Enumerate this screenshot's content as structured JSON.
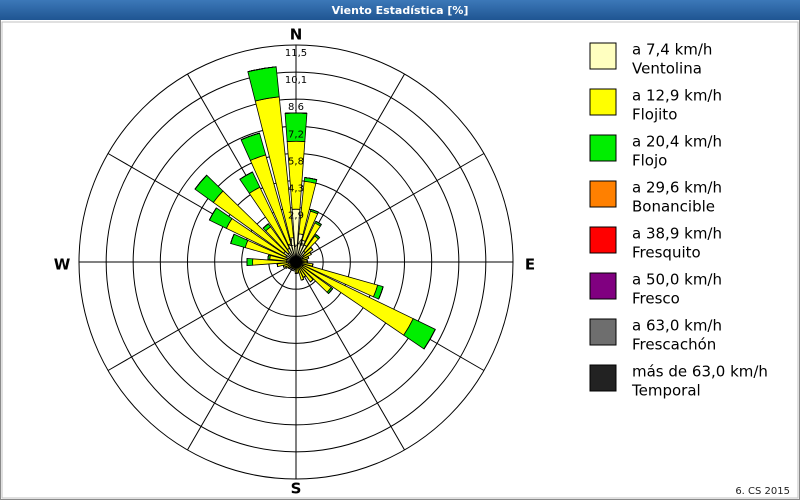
{
  "chart_data": {
    "type": "windrose",
    "title": "Viento Estadística [%]",
    "x": [
      0,
      10,
      20,
      30,
      40,
      50,
      60,
      70,
      80,
      90,
      100,
      110,
      120,
      130,
      140,
      150,
      160,
      170,
      180,
      190,
      200,
      210,
      220,
      230,
      240,
      250,
      260,
      270,
      280,
      290,
      300,
      310,
      320,
      330,
      340,
      350
    ],
    "rlim": [
      0,
      11.5
    ],
    "rticks": [
      {
        "value": 1.44,
        "label": "1,4"
      },
      {
        "value": 2.88,
        "label": "2,9"
      },
      {
        "value": 4.31,
        "label": "4,3"
      },
      {
        "value": 5.75,
        "label": "5,8"
      },
      {
        "value": 7.19,
        "label": "7,2"
      },
      {
        "value": 8.63,
        "label": "8,6"
      },
      {
        "value": 10.06,
        "label": "10,1"
      },
      {
        "value": 11.5,
        "label": "11,5"
      }
    ],
    "compass_labels": [
      "N",
      "E",
      "S",
      "W"
    ],
    "series": [
      {
        "range": "a 7,4 km/h",
        "name": "Ventolina",
        "color": "#ffffc0",
        "values": [
          2.8,
          1.5,
          1.2,
          1.0,
          0.7,
          0.5,
          0.4,
          0.3,
          0.3,
          0.3,
          0.3,
          0.4,
          0.4,
          0.3,
          0.3,
          0.3,
          0.3,
          0.3,
          0.3,
          0.2,
          0.2,
          0.2,
          0.2,
          0.2,
          0.3,
          0.3,
          0.4,
          0.5,
          0.5,
          0.5,
          0.6,
          0.8,
          0.6,
          0.8,
          1.0,
          1.3
        ]
      },
      {
        "range": "a 12,9 km/h",
        "name": "Flojito",
        "color": "#ffff00",
        "values": [
          3.6,
          2.8,
          1.6,
          1.3,
          1.0,
          0.6,
          0.5,
          0.4,
          0.3,
          0.3,
          0.6,
          4.1,
          6.5,
          2.0,
          1.0,
          0.6,
          0.7,
          0.3,
          0.3,
          0.2,
          0.2,
          0.2,
          0.2,
          0.3,
          0.3,
          0.4,
          0.6,
          1.8,
          0.9,
          2.3,
          3.5,
          4.6,
          1.7,
          3.6,
          4.9,
          7.5
        ]
      },
      {
        "range": "a 20,4 km/h",
        "name": "Flojo",
        "color": "#00ee00",
        "values": [
          1.5,
          0.2,
          0.1,
          0.1,
          0.1,
          0,
          0,
          0,
          0,
          0,
          0,
          0.3,
          1.3,
          0.1,
          0,
          0,
          0,
          0,
          0,
          0,
          0,
          0,
          0,
          0,
          0,
          0,
          0,
          0.3,
          0.1,
          0.8,
          1.0,
          1.2,
          0.2,
          0.9,
          1.2,
          1.6
        ]
      },
      {
        "range": "a 29,6 km/h",
        "name": "Bonancible",
        "color": "#ff8000",
        "values": [
          0,
          0,
          0,
          0,
          0,
          0,
          0,
          0,
          0,
          0,
          0,
          0,
          0,
          0,
          0,
          0,
          0,
          0,
          0,
          0,
          0,
          0,
          0,
          0,
          0,
          0,
          0,
          0,
          0,
          0,
          0,
          0,
          0,
          0,
          0,
          0
        ]
      },
      {
        "range": "a 38,9 km/h",
        "name": "Fresquito",
        "color": "#ff0000",
        "values": [
          0,
          0,
          0,
          0,
          0,
          0,
          0,
          0,
          0,
          0,
          0,
          0,
          0,
          0,
          0,
          0,
          0,
          0,
          0,
          0,
          0,
          0,
          0,
          0,
          0,
          0,
          0,
          0,
          0,
          0,
          0,
          0,
          0,
          0,
          0,
          0
        ]
      },
      {
        "range": "a 50,0 km/h",
        "name": "Fresco",
        "color": "#800080",
        "values": [
          0,
          0,
          0,
          0,
          0,
          0,
          0,
          0,
          0,
          0,
          0,
          0,
          0,
          0,
          0,
          0,
          0,
          0,
          0,
          0,
          0,
          0,
          0,
          0,
          0,
          0,
          0,
          0,
          0,
          0,
          0,
          0,
          0,
          0,
          0,
          0
        ]
      },
      {
        "range": "a 63,0 km/h",
        "name": "Frescachón",
        "color": "#6e6e6e",
        "values": [
          0,
          0,
          0,
          0,
          0,
          0,
          0,
          0,
          0,
          0,
          0,
          0,
          0,
          0,
          0,
          0,
          0,
          0,
          0,
          0,
          0,
          0,
          0,
          0,
          0,
          0,
          0,
          0,
          0,
          0,
          0,
          0,
          0,
          0,
          0,
          0
        ]
      },
      {
        "range": "más de 63,0 km/h",
        "name": "Temporal",
        "color": "#222222",
        "values": [
          0,
          0,
          0,
          0,
          0,
          0,
          0,
          0,
          0,
          0,
          0,
          0,
          0,
          0,
          0,
          0,
          0,
          0,
          0,
          0,
          0,
          0,
          0,
          0,
          0,
          0,
          0,
          0,
          0,
          0,
          0,
          0,
          0,
          0,
          0,
          0
        ]
      }
    ],
    "footer": "6. CS 2015"
  }
}
